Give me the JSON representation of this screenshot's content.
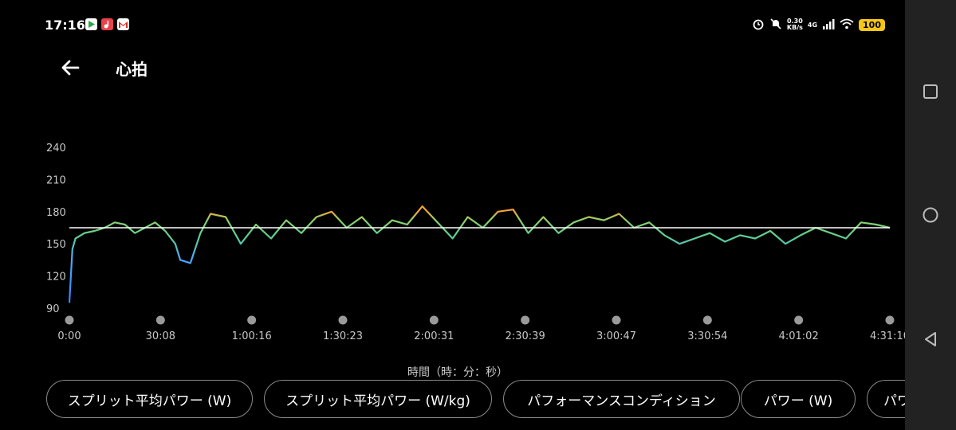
{
  "status_bar": {
    "time": "17:16",
    "net_speed_value": "0.30",
    "net_speed_unit": "KB/s",
    "network": "4G",
    "battery": "100"
  },
  "app_bar": {
    "title": "心拍"
  },
  "chart_data": {
    "type": "line",
    "y_ticks": [
      "240",
      "210",
      "180",
      "150",
      "120",
      "90"
    ],
    "x_ticks": [
      "0:00",
      "30:08",
      "1:00:16",
      "1:30:23",
      "2:00:31",
      "2:30:39",
      "3:00:47",
      "3:30:54",
      "4:01:02",
      "4:31:10"
    ],
    "xlabel": "時間（時：分：秒）",
    "ylim": [
      90,
      240
    ],
    "xlim_seconds": [
      0,
      16270
    ],
    "average_line": 165,
    "series": [
      {
        "x": [
          0,
          60,
          120,
          300,
          500,
          700,
          900,
          1100,
          1300,
          1500,
          1700,
          1900,
          2100,
          2200,
          2400,
          2600,
          2800,
          3100,
          3400,
          3700,
          4000,
          4300,
          4600,
          4900,
          5200,
          5500,
          5800,
          6100,
          6400,
          6700,
          7000,
          7300,
          7600,
          7900,
          8200,
          8500,
          8800,
          9100,
          9400,
          9700,
          10000,
          10300,
          10600,
          10900,
          11200,
          11500,
          11800,
          12100,
          12400,
          12700,
          13000,
          13300,
          13600,
          13900,
          14200,
          14500,
          14800,
          15100,
          15400,
          15700,
          16000,
          16270
        ],
        "y": [
          95,
          145,
          155,
          160,
          162,
          165,
          170,
          168,
          160,
          165,
          170,
          162,
          150,
          135,
          132,
          160,
          178,
          175,
          150,
          168,
          155,
          172,
          160,
          175,
          180,
          165,
          175,
          160,
          172,
          168,
          185,
          170,
          155,
          175,
          165,
          180,
          182,
          160,
          175,
          160,
          170,
          175,
          172,
          178,
          165,
          170,
          158,
          150,
          155,
          160,
          152,
          158,
          155,
          162,
          150,
          158,
          165,
          160,
          155,
          170,
          168,
          165
        ]
      }
    ]
  },
  "chips": [
    "スプリット平均パワー (W)",
    "スプリット平均パワー (W/kg)",
    "パフォーマンスコンディション",
    "パワー (W)",
    "パワ"
  ],
  "nav": {
    "recent": "recent-apps",
    "home": "home",
    "back": "back"
  }
}
